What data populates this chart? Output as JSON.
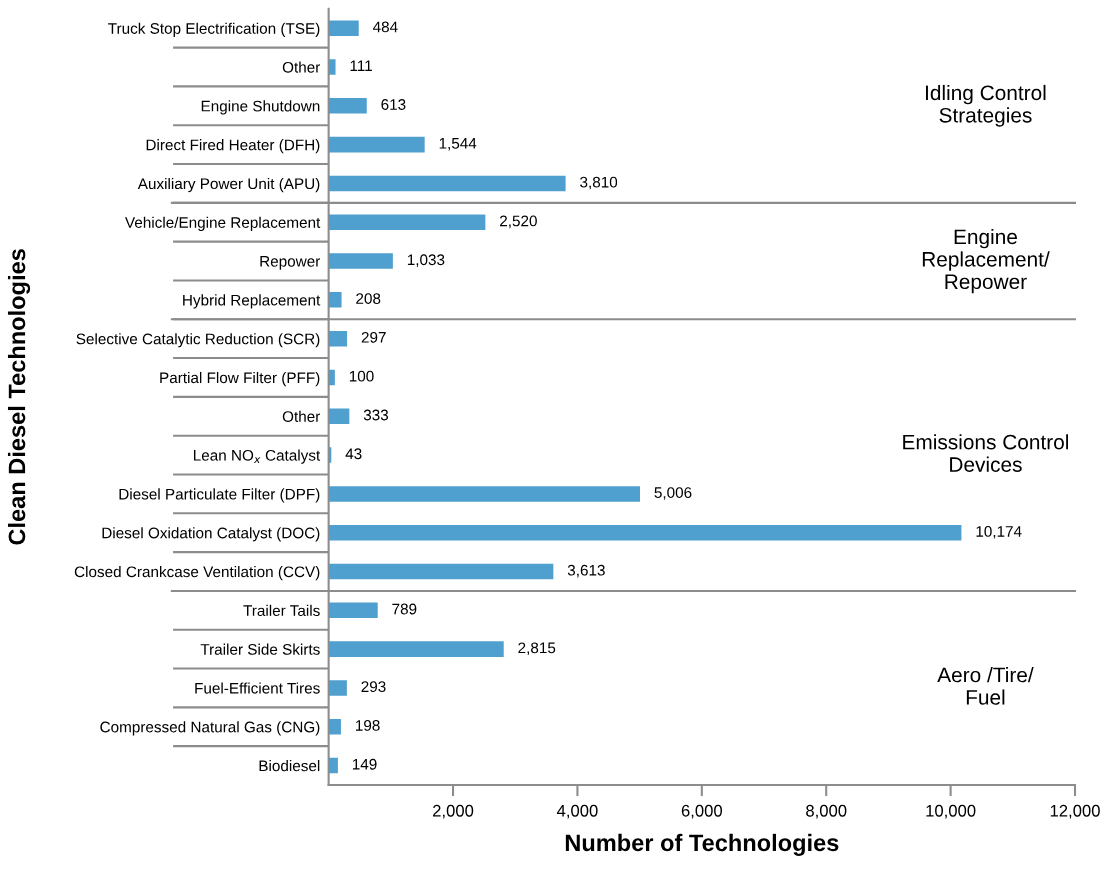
{
  "chart_data": {
    "type": "bar",
    "orientation": "horizontal",
    "categories": [
      "Truck Stop Electrification (TSE)",
      "Other",
      "Engine Shutdown",
      "Direct Fired Heater (DFH)",
      "Auxiliary Power Unit (APU)",
      "Vehicle/Engine Replacement",
      "Repower",
      "Hybrid Replacement",
      "Selective Catalytic Reduction (SCR)",
      "Partial Flow Filter (PFF)",
      "Other",
      "Lean NO$_{x}$ Catalyst",
      "Diesel Particulate Filter (DPF)",
      "Diesel Oxidation Catalyst (DOC)",
      "Closed Crankcase Ventilation (CCV)",
      "Trailer Tails",
      "Trailer Side Skirts",
      "Fuel-Efficient Tires",
      "Compressed Natural Gas (CNG)",
      "Biodiesel"
    ],
    "values": [
      484,
      111,
      613,
      1544,
      3810,
      2520,
      1033,
      208,
      297,
      100,
      333,
      43,
      5006,
      10174,
      3613,
      789,
      2815,
      293,
      198,
      149
    ],
    "value_labels": [
      "484",
      "111",
      "613",
      "1,544",
      "3,810",
      "2,520",
      "1,033",
      "208",
      "297",
      "100",
      "333",
      "43",
      "5,006",
      "10,174",
      "3,613",
      "789",
      "2,815",
      "293",
      "198",
      "149"
    ],
    "color": "#4f9fcf",
    "xlim": [
      0,
      12000
    ],
    "xticks": [
      {
        "value": 2000,
        "label": "2,000"
      },
      {
        "value": 4000,
        "label": "4,000"
      },
      {
        "value": 6000,
        "label": "6,000"
      },
      {
        "value": 8000,
        "label": "8,000"
      },
      {
        "value": 10000,
        "label": "10,000"
      },
      {
        "value": 12000,
        "label": "12,000"
      }
    ],
    "xlabel": "Number of Technologies",
    "ylabel": "Clean Diesel Technologies",
    "annotations": [
      "Idling Control\nStrategies",
      "Engine\nReplacement/\nRepower",
      "Emissions Control\nDevices",
      "Aero /Tire/\nFuel"
    ],
    "grid": false,
    "legend": false
  }
}
